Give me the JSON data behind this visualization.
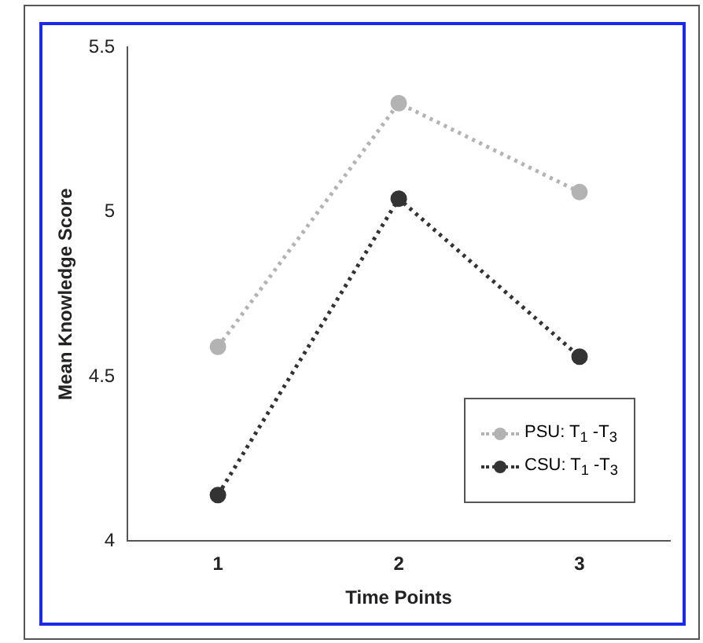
{
  "chart_data": {
    "type": "line",
    "xlabel": "Time Points",
    "ylabel": "Mean Knowledge Score",
    "categories": [
      "1",
      "2",
      "3"
    ],
    "series": [
      {
        "name": "PSU: T$_{1}$ -T$_{3}$",
        "color": "#b3b3b3",
        "values": [
          4.59,
          5.33,
          5.06
        ]
      },
      {
        "name": "CSU: T$_{1}$ -T$_{3}$",
        "color": "#333333",
        "values": [
          4.14,
          5.04,
          4.56
        ]
      }
    ],
    "ylim": [
      4,
      5.5
    ],
    "yticks": [
      4,
      4.5,
      5,
      5.5
    ],
    "grid": false,
    "legend": "bottom right",
    "marker": "circle",
    "line_style": "dotted"
  }
}
